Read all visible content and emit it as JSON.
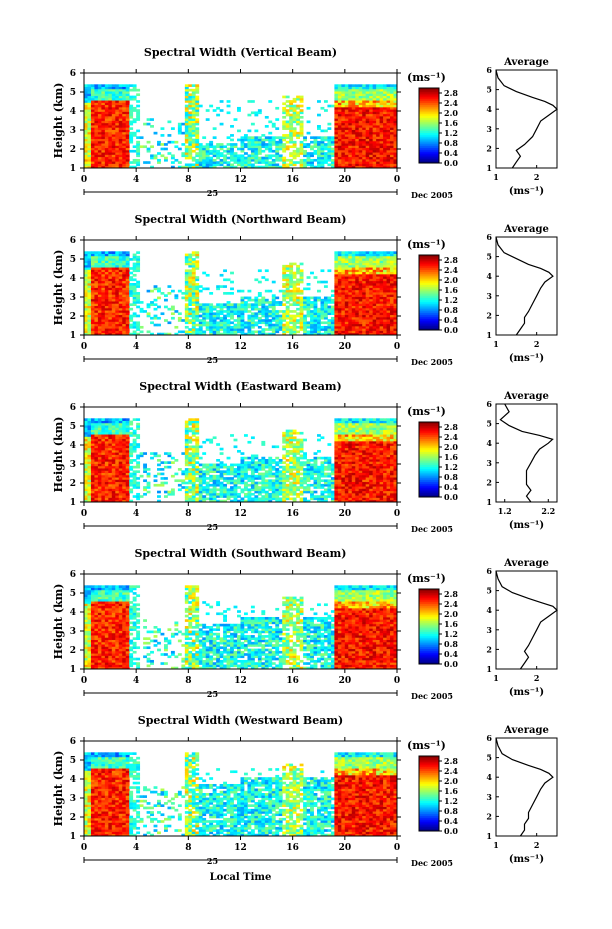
{
  "figure": {
    "xlabel_bottom": "Local Time",
    "date_label": "Dec 2005",
    "day_label": "25",
    "avg_title": "Average",
    "cb_unit": "(ms⁻¹)",
    "avg_xunit": "(ms⁻¹)",
    "ylabel": "Height (km)"
  },
  "chart_data": [
    {
      "type": "heatmap",
      "title": "Spectral Width (Vertical Beam)",
      "x_ticks": [
        "0",
        "4",
        "8",
        "12",
        "16",
        "20",
        "0"
      ],
      "xlim": [
        0,
        24
      ],
      "y_ticks": [
        "1",
        "2",
        "3",
        "4",
        "5",
        "6"
      ],
      "ylim": [
        1,
        6
      ],
      "colorbar_ticks": [
        "0.0",
        "0.4",
        "0.8",
        "1.2",
        "1.6",
        "2.0",
        "2.4",
        "2.8"
      ],
      "colorbar_range": [
        0,
        3.0
      ],
      "avg_x_ticks": [
        "1",
        "2"
      ],
      "avg_xlim": [
        1,
        2.5
      ],
      "avg_profile": {
        "height": [
          1.0,
          1.3,
          1.6,
          1.9,
          2.2,
          2.6,
          3.0,
          3.4,
          3.7,
          4.0,
          4.2,
          4.4,
          4.6,
          4.9,
          5.2,
          5.6,
          6.0
        ],
        "value": [
          1.4,
          1.5,
          1.6,
          1.5,
          1.7,
          1.9,
          2.0,
          2.1,
          2.3,
          2.5,
          2.4,
          2.2,
          1.9,
          1.5,
          1.2,
          1.05,
          1.0
        ]
      }
    },
    {
      "type": "heatmap",
      "title": "Spectral Width (Northward Beam)",
      "x_ticks": [
        "0",
        "4",
        "8",
        "12",
        "16",
        "20",
        "0"
      ],
      "xlim": [
        0,
        24
      ],
      "y_ticks": [
        "1",
        "2",
        "3",
        "4",
        "5",
        "6"
      ],
      "ylim": [
        1,
        6
      ],
      "colorbar_ticks": [
        "0.0",
        "0.4",
        "0.8",
        "1.2",
        "1.6",
        "2.0",
        "2.4",
        "2.8"
      ],
      "colorbar_range": [
        0,
        3.0
      ],
      "avg_x_ticks": [
        "1",
        "2"
      ],
      "avg_xlim": [
        1,
        2.5
      ],
      "avg_profile": {
        "height": [
          1.0,
          1.3,
          1.6,
          1.9,
          2.2,
          2.6,
          3.0,
          3.4,
          3.7,
          4.0,
          4.2,
          4.4,
          4.6,
          4.9,
          5.2,
          5.6,
          6.0
        ],
        "value": [
          1.5,
          1.6,
          1.7,
          1.7,
          1.8,
          1.9,
          2.0,
          2.1,
          2.2,
          2.4,
          2.3,
          2.1,
          1.8,
          1.5,
          1.2,
          1.05,
          1.0
        ]
      }
    },
    {
      "type": "heatmap",
      "title": "Spectral Width (Eastward Beam)",
      "x_ticks": [
        "0",
        "4",
        "8",
        "12",
        "16",
        "20",
        "0"
      ],
      "xlim": [
        0,
        24
      ],
      "y_ticks": [
        "1",
        "2",
        "3",
        "4",
        "5",
        "6"
      ],
      "ylim": [
        1,
        6
      ],
      "colorbar_ticks": [
        "0.0",
        "0.4",
        "0.8",
        "1.2",
        "1.6",
        "2.0",
        "2.4",
        "2.8"
      ],
      "colorbar_range": [
        0,
        3.0
      ],
      "avg_x_ticks": [
        "1.2",
        "2.2"
      ],
      "avg_xlim": [
        1.0,
        2.4
      ],
      "avg_profile": {
        "height": [
          1.0,
          1.3,
          1.6,
          1.9,
          2.2,
          2.6,
          3.0,
          3.4,
          3.7,
          4.0,
          4.2,
          4.4,
          4.6,
          4.9,
          5.2,
          5.6,
          6.0
        ],
        "value": [
          1.8,
          1.7,
          1.8,
          1.7,
          1.7,
          1.7,
          1.8,
          1.9,
          2.0,
          2.2,
          2.3,
          2.0,
          1.6,
          1.3,
          1.1,
          1.3,
          1.2
        ]
      }
    },
    {
      "type": "heatmap",
      "title": "Spectral Width (Southward Beam)",
      "x_ticks": [
        "0",
        "4",
        "8",
        "12",
        "16",
        "20",
        "0"
      ],
      "xlim": [
        0,
        24
      ],
      "y_ticks": [
        "1",
        "2",
        "3",
        "4",
        "5",
        "6"
      ],
      "ylim": [
        1,
        6
      ],
      "colorbar_ticks": [
        "0.0",
        "0.4",
        "0.8",
        "1.2",
        "1.6",
        "2.0",
        "2.4",
        "2.8"
      ],
      "colorbar_range": [
        0,
        3.0
      ],
      "avg_x_ticks": [
        "1",
        "2"
      ],
      "avg_xlim": [
        1,
        2.5
      ],
      "avg_profile": {
        "height": [
          1.0,
          1.3,
          1.6,
          1.9,
          2.2,
          2.6,
          3.0,
          3.4,
          3.7,
          4.0,
          4.2,
          4.4,
          4.6,
          4.9,
          5.2,
          5.6,
          6.0
        ],
        "value": [
          1.6,
          1.7,
          1.8,
          1.7,
          1.8,
          1.9,
          2.0,
          2.1,
          2.3,
          2.5,
          2.4,
          2.1,
          1.8,
          1.4,
          1.15,
          1.05,
          1.0
        ]
      }
    },
    {
      "type": "heatmap",
      "title": "Spectral Width (Westward Beam)",
      "x_ticks": [
        "0",
        "4",
        "8",
        "12",
        "16",
        "20",
        "0"
      ],
      "xlim": [
        0,
        24
      ],
      "y_ticks": [
        "1",
        "2",
        "3",
        "4",
        "5",
        "6"
      ],
      "ylim": [
        1,
        6
      ],
      "colorbar_ticks": [
        "0.0",
        "0.4",
        "0.8",
        "1.2",
        "1.6",
        "2.0",
        "2.4",
        "2.8"
      ],
      "colorbar_range": [
        0,
        3.0
      ],
      "avg_x_ticks": [
        "1",
        "2"
      ],
      "avg_xlim": [
        1,
        2.5
      ],
      "avg_profile": {
        "height": [
          1.0,
          1.3,
          1.6,
          1.9,
          2.2,
          2.6,
          3.0,
          3.4,
          3.7,
          4.0,
          4.2,
          4.4,
          4.6,
          4.9,
          5.2,
          5.6,
          6.0
        ],
        "value": [
          1.6,
          1.7,
          1.7,
          1.8,
          1.8,
          1.9,
          2.0,
          2.1,
          2.2,
          2.4,
          2.3,
          2.1,
          1.8,
          1.4,
          1.15,
          1.05,
          1.0
        ]
      }
    }
  ]
}
